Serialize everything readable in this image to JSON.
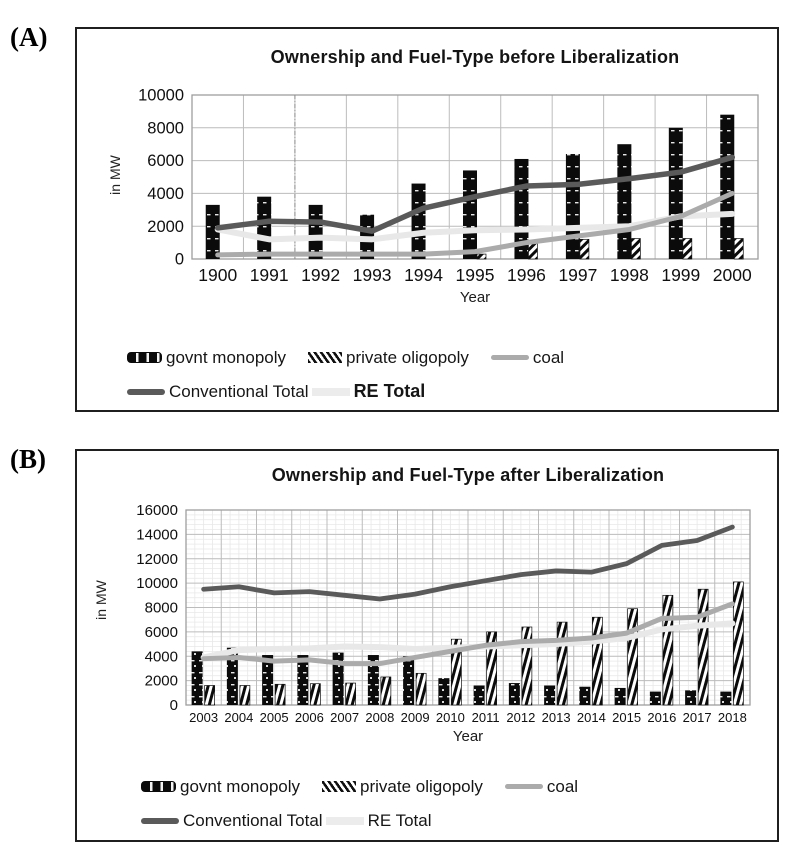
{
  "figure": {
    "background": "#ffffff"
  },
  "panels": [
    {
      "label": "(A)",
      "legend_rows": [
        [
          {
            "label": "govnt monopoly",
            "swatch": "bar-black"
          },
          {
            "label": "private oligopoly",
            "swatch": "bar-hatch"
          },
          {
            "label": "coal",
            "swatch": "line-coal"
          }
        ],
        [
          {
            "label": "Conventional Total",
            "swatch": "line-conventional"
          },
          {
            "label": "RE Total",
            "swatch": "line-re",
            "strong": true
          }
        ]
      ]
    },
    {
      "label": "(B)",
      "legend_rows": [
        [
          {
            "label": "govnt monopoly",
            "swatch": "bar-black"
          },
          {
            "label": "private oligopoly",
            "swatch": "bar-hatch"
          },
          {
            "label": "coal",
            "swatch": "line-coal"
          }
        ],
        [
          {
            "label": "Conventional Total",
            "swatch": "line-conventional"
          },
          {
            "label": "RE Total",
            "swatch": "line-re"
          }
        ]
      ]
    }
  ],
  "chart_data": [
    {
      "type": "combo",
      "title": "Ownership and Fuel-Type before Liberalization",
      "xlabel": "Year",
      "ylabel": "in MW",
      "categories": [
        "1900",
        "1991",
        "1992",
        "1993",
        "1994",
        "1995",
        "1996",
        "1997",
        "1998",
        "1999",
        "2000"
      ],
      "ylim": [
        0,
        10000
      ],
      "ytick_step": 2000,
      "grid": "major-only",
      "legend_position": "bottom-left",
      "dashed_vline_boundary_index": 2,
      "series": [
        {
          "name": "govnt monopoly",
          "type": "bar",
          "style": "solid-black",
          "color": "#0b0b0b",
          "values": [
            3300,
            3800,
            3300,
            2700,
            4600,
            5400,
            6100,
            6400,
            7000,
            8000,
            8800
          ]
        },
        {
          "name": "private oligopoly",
          "type": "bar",
          "style": "diagonal-hatch",
          "color": "#0b0b0b",
          "values": [
            0,
            0,
            0,
            0,
            0,
            300,
            1100,
            1200,
            1250,
            1250,
            1250
          ]
        },
        {
          "name": "RE Total",
          "type": "line",
          "color": "#e8e8e8",
          "stroke_width": 6,
          "z": 1,
          "values": [
            1800,
            1200,
            1300,
            1200,
            1600,
            1750,
            1800,
            1900,
            2000,
            2600,
            2750
          ]
        },
        {
          "name": "coal",
          "type": "line",
          "color": "#ababab",
          "stroke_width": 5,
          "z": 2,
          "values": [
            250,
            300,
            300,
            300,
            300,
            450,
            1000,
            1400,
            1800,
            2600,
            4000
          ]
        },
        {
          "name": "Conventional Total",
          "type": "line",
          "color": "#5a5a5a",
          "stroke_width": 5.5,
          "z": 3,
          "values": [
            1900,
            2300,
            2250,
            1700,
            3100,
            3800,
            4450,
            4550,
            4900,
            5300,
            6200
          ]
        }
      ]
    },
    {
      "type": "combo",
      "title": "Ownership and Fuel-Type after Liberalization",
      "xlabel": "Year",
      "ylabel": "in MW",
      "categories": [
        "2003",
        "2004",
        "2005",
        "2006",
        "2007",
        "2008",
        "2009",
        "2010",
        "2011",
        "2012",
        "2013",
        "2014",
        "2015",
        "2016",
        "2017",
        "2018"
      ],
      "ylim": [
        0,
        16000
      ],
      "ytick_step": 2000,
      "yminor_step": 400,
      "grid": "major+minor",
      "legend_position": "bottom-left",
      "series": [
        {
          "name": "govnt monopoly",
          "type": "bar",
          "style": "solid-black-dotted",
          "color": "#0b0b0b",
          "values": [
            4400,
            4700,
            4100,
            4100,
            4300,
            4100,
            4000,
            2200,
            1600,
            1800,
            1600,
            1500,
            1400,
            1100,
            1200,
            1100
          ]
        },
        {
          "name": "private oligopoly",
          "type": "bar",
          "style": "steep-hatch",
          "color": "#0b0b0b",
          "values": [
            1600,
            1600,
            1700,
            1750,
            1800,
            2300,
            2600,
            5400,
            6000,
            6400,
            6800,
            7200,
            7900,
            9000,
            9500,
            10100
          ]
        },
        {
          "name": "RE Total",
          "type": "line",
          "color": "#e8e8e8",
          "stroke_width": 6,
          "z": 1,
          "values": [
            3900,
            4500,
            4600,
            4650,
            4800,
            4750,
            4600,
            4700,
            4800,
            4900,
            5000,
            5200,
            5500,
            6200,
            6500,
            6700
          ]
        },
        {
          "name": "coal",
          "type": "line",
          "color": "#ababab",
          "stroke_width": 5,
          "z": 2,
          "values": [
            3800,
            3900,
            3600,
            3700,
            3400,
            3400,
            3900,
            4400,
            4900,
            5200,
            5300,
            5500,
            5900,
            7100,
            7200,
            8300
          ]
        },
        {
          "name": "Conventional Total",
          "type": "line",
          "color": "#5a5a5a",
          "stroke_width": 4.8,
          "z": 3,
          "values": [
            9500,
            9700,
            9200,
            9300,
            9000,
            8700,
            9100,
            9700,
            10200,
            10700,
            11000,
            10900,
            11600,
            13100,
            13500,
            14600
          ]
        }
      ]
    }
  ]
}
